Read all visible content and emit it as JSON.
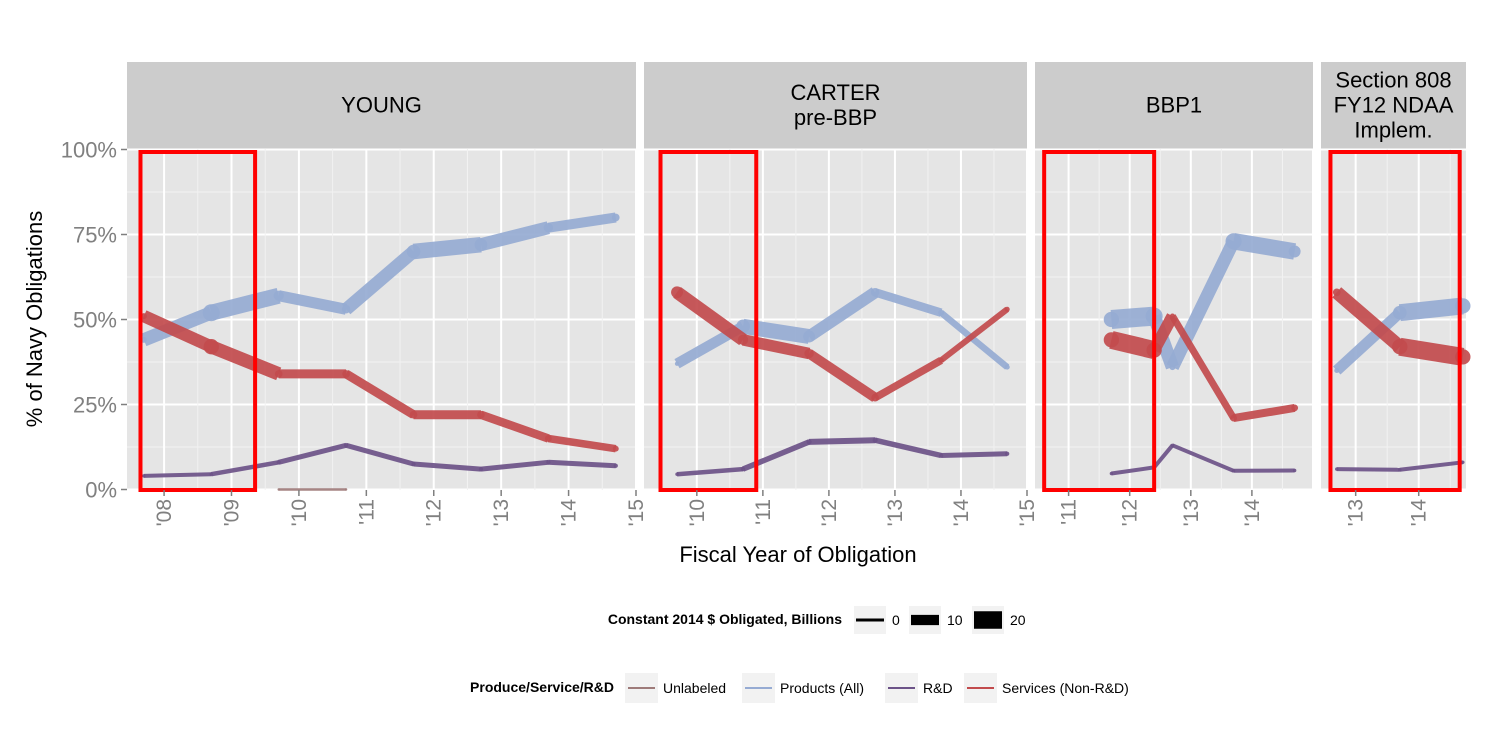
{
  "chart_data": {
    "type": "line",
    "xlabel": "Fiscal Year of Obligation",
    "ylabel": "% of  Navy  Obligations",
    "y_ticks": [
      "0%",
      "25%",
      "50%",
      "75%",
      "100%"
    ],
    "ylim": [
      0,
      1
    ],
    "grid": true,
    "legend_placement": "bottom",
    "size_legend": {
      "title": "Constant 2014 $ Obligated, Billions",
      "items": [
        {
          "label": "0",
          "value": 0
        },
        {
          "label": "10",
          "value": 10
        },
        {
          "label": "20",
          "value": 20
        }
      ]
    },
    "color_legend": {
      "title": "Produce/Service/R&D",
      "items": [
        {
          "label": "Unlabeled",
          "color": "#9E7B7A"
        },
        {
          "label": "Products (All)",
          "color": "#96ABD3"
        },
        {
          "label": "R&D",
          "color": "#6C5388"
        },
        {
          "label": "Services (Non-R&D)",
          "color": "#C24B4D"
        }
      ]
    },
    "highlight_color": "#FF0000",
    "facets": [
      {
        "title_lines": [
          "YOUNG"
        ],
        "x_tick_labels": [
          "'08",
          "'09",
          "'10",
          "'11",
          "'12",
          "'13",
          "'14",
          "'15"
        ],
        "xlim": [
          2007.45,
          2015
        ],
        "highlight_range": [
          2007.65,
          2009.35
        ],
        "series": [
          {
            "name": "Unlabeled",
            "x": [
              2009.7,
              2010.7
            ],
            "y": [
              0.0,
              0.0
            ],
            "size": [
              0.3,
              0.3
            ]
          },
          {
            "name": "Products (All)",
            "x": [
              2007.7,
              2008.7,
              2009.7,
              2010.7,
              2011.7,
              2012.7,
              2013.7,
              2014.7
            ],
            "y": [
              0.44,
              0.52,
              0.57,
              0.53,
              0.7,
              0.72,
              0.77,
              0.8
            ],
            "size": [
              7,
              20,
              12,
              10,
              16,
              15,
              11,
              9
            ]
          },
          {
            "name": "R&D",
            "x": [
              2007.7,
              2008.7,
              2009.7,
              2010.7,
              2011.7,
              2012.7,
              2013.7,
              2014.7
            ],
            "y": [
              0.04,
              0.045,
              0.08,
              0.13,
              0.075,
              0.06,
              0.08,
              0.07
            ],
            "size": [
              4,
              4,
              5,
              5,
              5,
              5,
              5,
              5
            ]
          },
          {
            "name": "Services (Non-R&D)",
            "x": [
              2007.7,
              2008.7,
              2009.7,
              2010.7,
              2011.7,
              2012.7,
              2013.7,
              2014.7
            ],
            "y": [
              0.51,
              0.42,
              0.34,
              0.34,
              0.22,
              0.22,
              0.15,
              0.12
            ],
            "size": [
              7,
              18,
              9,
              9,
              9,
              9,
              8,
              7
            ]
          }
        ]
      },
      {
        "title_lines": [
          "CARTER",
          "pre-BBP"
        ],
        "x_tick_labels": [
          "'10",
          "'11",
          "'12",
          "'13",
          "'14",
          "'15"
        ],
        "xlim": [
          2009.2,
          2015
        ],
        "highlight_range": [
          2009.45,
          2010.9
        ],
        "series": [
          {
            "name": "Products (All)",
            "x": [
              2009.7,
              2010.7,
              2011.7,
              2012.7,
              2013.7,
              2014.7
            ],
            "y": [
              0.37,
              0.48,
              0.45,
              0.58,
              0.52,
              0.36
            ],
            "size": [
              5,
              16,
              14,
              10,
              7,
              6
            ]
          },
          {
            "name": "R&D",
            "x": [
              2009.7,
              2010.7,
              2011.7,
              2012.7,
              2013.7,
              2014.7
            ],
            "y": [
              0.045,
              0.06,
              0.14,
              0.145,
              0.1,
              0.105
            ],
            "size": [
              4,
              5,
              6,
              6,
              5,
              5
            ]
          },
          {
            "name": "Services (Non-R&D)",
            "x": [
              2009.7,
              2010.7,
              2011.7,
              2012.7,
              2013.7,
              2014.7
            ],
            "y": [
              0.58,
              0.44,
              0.4,
              0.27,
              0.38,
              0.53
            ],
            "size": [
              14,
              12,
              11,
              9,
              6,
              6
            ]
          }
        ]
      },
      {
        "title_lines": [
          "BBP1"
        ],
        "x_tick_labels": [
          "'11",
          "'12",
          "'13",
          "'14"
        ],
        "xlim": [
          2010.45,
          2015
        ],
        "highlight_range": [
          2010.6,
          2012.4
        ],
        "series": [
          {
            "name": "Products (All)",
            "x": [
              2011.7,
              2012.4,
              2012.7,
              2013.7,
              2014.7
            ],
            "y": [
              0.5,
              0.51,
              0.36,
              0.73,
              0.7
            ],
            "size": [
              18,
              20,
              7,
              19,
              14
            ]
          },
          {
            "name": "R&D",
            "x": [
              2011.7,
              2012.4,
              2012.7,
              2013.7,
              2014.7
            ],
            "y": [
              0.047,
              0.065,
              0.13,
              0.055,
              0.056
            ],
            "size": [
              4,
              4,
              4,
              4,
              4
            ]
          },
          {
            "name": "Services (Non-R&D)",
            "x": [
              2011.7,
              2012.4,
              2012.7,
              2013.7,
              2014.7
            ],
            "y": [
              0.44,
              0.41,
              0.51,
              0.21,
              0.24
            ],
            "size": [
              18,
              18,
              6,
              8,
              8
            ]
          }
        ]
      },
      {
        "title_lines": [
          "Section 808",
          "FY12 NDAA",
          "Implem."
        ],
        "x_tick_labels": [
          "'13",
          "'14"
        ],
        "xlim": [
          2012.45,
          2014.75
        ],
        "highlight_range": [
          2012.6,
          2014.65
        ],
        "series": [
          {
            "name": "Products (All)",
            "x": [
              2012.7,
              2013.7,
              2014.7
            ],
            "y": [
              0.35,
              0.52,
              0.54
            ],
            "size": [
              6,
              16,
              18
            ]
          },
          {
            "name": "R&D",
            "x": [
              2012.7,
              2013.7,
              2014.7
            ],
            "y": [
              0.06,
              0.058,
              0.08
            ],
            "size": [
              4,
              4,
              4
            ]
          },
          {
            "name": "Services (Non-R&D)",
            "x": [
              2012.7,
              2013.7,
              2014.7
            ],
            "y": [
              0.58,
              0.42,
              0.39
            ],
            "size": [
              9,
              18,
              18
            ]
          }
        ]
      }
    ]
  }
}
